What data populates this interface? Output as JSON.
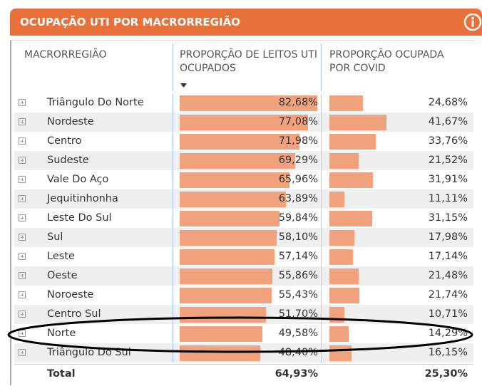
{
  "header": {
    "title": "OCUPAÇÃO UTI POR MACRORREGIÃO"
  },
  "table": {
    "columns": [
      "MACRORREGIÃO",
      "PROPORÇÃO DE LEITOS UTI OCUPADOS",
      "PROPORÇÃO OCUPADA POR COVID"
    ],
    "rows": [
      {
        "name": "Triângulo Do Norte",
        "occupied": 82.68,
        "occupied_label": "82,68%",
        "covid": 24.68,
        "covid_label": "24,68%"
      },
      {
        "name": "Nordeste",
        "occupied": 77.08,
        "occupied_label": "77,08%",
        "covid": 41.67,
        "covid_label": "41,67%"
      },
      {
        "name": "Centro",
        "occupied": 71.98,
        "occupied_label": "71,98%",
        "covid": 33.76,
        "covid_label": "33,76%"
      },
      {
        "name": "Sudeste",
        "occupied": 69.29,
        "occupied_label": "69,29%",
        "covid": 21.52,
        "covid_label": "21,52%"
      },
      {
        "name": "Vale Do Aço",
        "occupied": 65.96,
        "occupied_label": "65,96%",
        "covid": 31.91,
        "covid_label": "31,91%"
      },
      {
        "name": "Jequitinhonha",
        "occupied": 63.89,
        "occupied_label": "63,89%",
        "covid": 11.11,
        "covid_label": "11,11%"
      },
      {
        "name": "Leste Do Sul",
        "occupied": 59.84,
        "occupied_label": "59,84%",
        "covid": 31.15,
        "covid_label": "31,15%"
      },
      {
        "name": "Sul",
        "occupied": 58.1,
        "occupied_label": "58,10%",
        "covid": 17.98,
        "covid_label": "17,98%"
      },
      {
        "name": "Leste",
        "occupied": 57.14,
        "occupied_label": "57,14%",
        "covid": 17.14,
        "covid_label": "17,14%"
      },
      {
        "name": "Oeste",
        "occupied": 55.86,
        "occupied_label": "55,86%",
        "covid": 21.48,
        "covid_label": "21,48%"
      },
      {
        "name": "Noroeste",
        "occupied": 55.43,
        "occupied_label": "55,43%",
        "covid": 21.74,
        "covid_label": "21,74%"
      },
      {
        "name": "Centro Sul",
        "occupied": 51.7,
        "occupied_label": "51,70%",
        "covid": 10.71,
        "covid_label": "10,71%"
      },
      {
        "name": "Norte",
        "occupied": 49.58,
        "occupied_label": "49,58%",
        "covid": 14.29,
        "covid_label": "14,29%"
      },
      {
        "name": "Triângulo Do Sul",
        "occupied": 48.4,
        "occupied_label": "48,40%",
        "covid": 16.15,
        "covid_label": "16,15%"
      }
    ],
    "total": {
      "name": "Total",
      "occupied_label": "64,93%",
      "covid_label": "25,30%"
    }
  }
}
